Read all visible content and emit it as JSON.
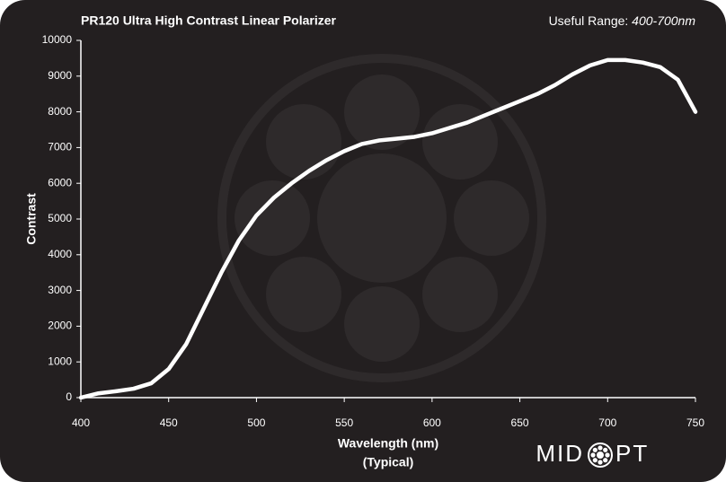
{
  "chart_data": {
    "type": "line",
    "title": "PR120 Ultra High Contrast Linear Polarizer",
    "range_label": "Useful Range:",
    "range_value": "400-700nm",
    "xlabel": "Wavelength (nm)",
    "xlabel_sub": "(Typical)",
    "ylabel": "Contrast",
    "logo_left": "MID",
    "logo_right": "PT",
    "x": [
      400,
      410,
      420,
      430,
      440,
      450,
      460,
      470,
      480,
      490,
      500,
      510,
      520,
      530,
      540,
      550,
      560,
      570,
      580,
      590,
      600,
      610,
      620,
      630,
      640,
      650,
      660,
      670,
      680,
      690,
      700,
      710,
      720,
      730,
      740,
      750
    ],
    "series": [
      {
        "color": "#ffffff",
        "values": [
          0,
          120,
          180,
          250,
          400,
          800,
          1500,
          2500,
          3500,
          4400,
          5100,
          5600,
          6000,
          6350,
          6650,
          6900,
          7100,
          7200,
          7250,
          7300,
          7400,
          7550,
          7700,
          7900,
          8100,
          8300,
          8500,
          8750,
          9050,
          9300,
          9450,
          9450,
          9380,
          9250,
          8900,
          8000
        ]
      }
    ],
    "xlim": [
      400,
      750
    ],
    "xticks": [
      400,
      450,
      500,
      550,
      600,
      650,
      700,
      750
    ],
    "ylim": [
      0,
      10000
    ],
    "yticks": [
      0,
      1000,
      2000,
      3000,
      4000,
      5000,
      6000,
      7000,
      8000,
      9000,
      10000
    ]
  }
}
